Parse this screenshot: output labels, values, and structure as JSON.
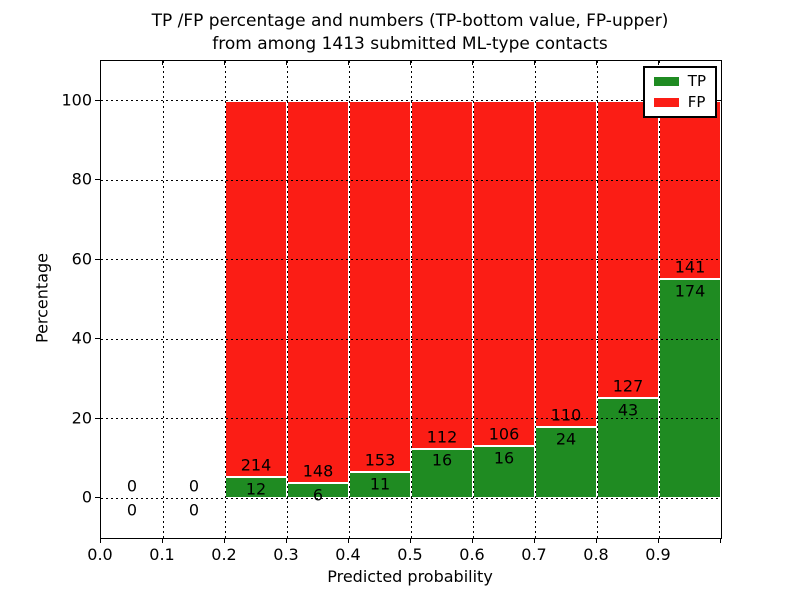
{
  "chart_data": {
    "type": "bar",
    "stacked": true,
    "title_line1": "TP /FP percentage and numbers (TP-bottom value, FP-upper)",
    "title_line2": "from among 1413 submitted ML-type contacts",
    "xlabel": "Predicted probability",
    "ylabel": "Percentage",
    "xlim": [
      0.0,
      1.0
    ],
    "ylim": [
      -10,
      110
    ],
    "x_tick_labels": [
      "0.0",
      "0.1",
      "0.2",
      "0.3",
      "0.4",
      "0.5",
      "0.6",
      "0.7",
      "0.8",
      "0.9"
    ],
    "y_ticks": [
      0,
      20,
      40,
      60,
      80,
      100
    ],
    "bar_width": 0.1,
    "grid": {
      "style": "dotted",
      "color": "#000000",
      "drawn_on_top": true
    },
    "colors": {
      "tp": "#1f8b22",
      "fp": "#fb1d15",
      "bar_edge": "#ffffff"
    },
    "legend": {
      "position": "upper right",
      "items": [
        {
          "label": "TP",
          "color": "#1f8b22"
        },
        {
          "label": "FP",
          "color": "#fb1d15"
        }
      ]
    },
    "bins": [
      {
        "x_start": 0.0,
        "tp": 0,
        "fp": 0,
        "tp_pct": 0
      },
      {
        "x_start": 0.1,
        "tp": 0,
        "fp": 0,
        "tp_pct": 0
      },
      {
        "x_start": 0.2,
        "tp": 12,
        "fp": 214,
        "tp_pct": 5.31
      },
      {
        "x_start": 0.3,
        "tp": 6,
        "fp": 148,
        "tp_pct": 3.9
      },
      {
        "x_start": 0.4,
        "tp": 11,
        "fp": 153,
        "tp_pct": 6.71
      },
      {
        "x_start": 0.5,
        "tp": 16,
        "fp": 112,
        "tp_pct": 12.5
      },
      {
        "x_start": 0.6,
        "tp": 16,
        "fp": 106,
        "tp_pct": 13.11
      },
      {
        "x_start": 0.7,
        "tp": 24,
        "fp": 110,
        "tp_pct": 17.91
      },
      {
        "x_start": 0.8,
        "tp": 43,
        "fp": 127,
        "tp_pct": 25.29
      },
      {
        "x_start": 0.9,
        "tp": 174,
        "fp": 141,
        "tp_pct": 55.24
      }
    ]
  }
}
